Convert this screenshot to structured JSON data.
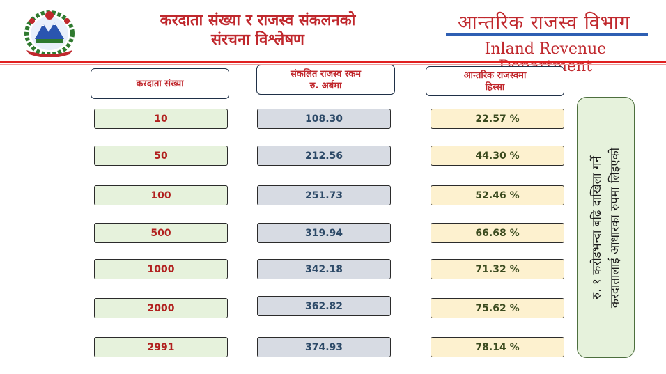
{
  "header": {
    "title_line1": "करदाता संख्या र राजस्व संकलनको",
    "title_line2": "संरचना विश्लेषण",
    "dept_nepali": "आन्तरिक राजस्व विभाग",
    "dept_english": "Inland Revenue Department"
  },
  "columns": {
    "taxpayers_header": "करदाता संख्या",
    "revenue_header_line1": "संकलित राजस्व रकम",
    "revenue_header_line2": "रु. अर्बमा",
    "share_header_line1": "आन्तरिक राजस्वमा",
    "share_header_line2": "हिस्सा"
  },
  "rows": [
    {
      "count": "10",
      "revenue": "108.30",
      "share": "22.57 %"
    },
    {
      "count": "50",
      "revenue": "212.56",
      "share": "44.30 %"
    },
    {
      "count": "100",
      "revenue": "251.73",
      "share": "52.46 %"
    },
    {
      "count": "500",
      "revenue": "319.94",
      "share": "66.68 %"
    },
    {
      "count": "1000",
      "revenue": "342.18",
      "share": "71.32 %"
    },
    {
      "count": "2000",
      "revenue": "362.82",
      "share": "75.62 %"
    },
    {
      "count": "2991",
      "revenue": "374.93",
      "share": "78.14 %"
    }
  ],
  "side_note": {
    "line1": "रु. १ करोडभन्दा बढि दाखिला गर्ने",
    "line2": "करदातालाई आधारका रुपमा लिइएको"
  },
  "colors": {
    "accent_red": "#c0282d",
    "rule_red": "#e02020",
    "blue_line": "#2e5fb3",
    "green_cell": "#e6f2dc",
    "grey_cell": "#d7dbe3",
    "yellow_cell": "#fdf1cf"
  },
  "icons": {
    "emblem": "nepal-government-emblem-icon"
  }
}
